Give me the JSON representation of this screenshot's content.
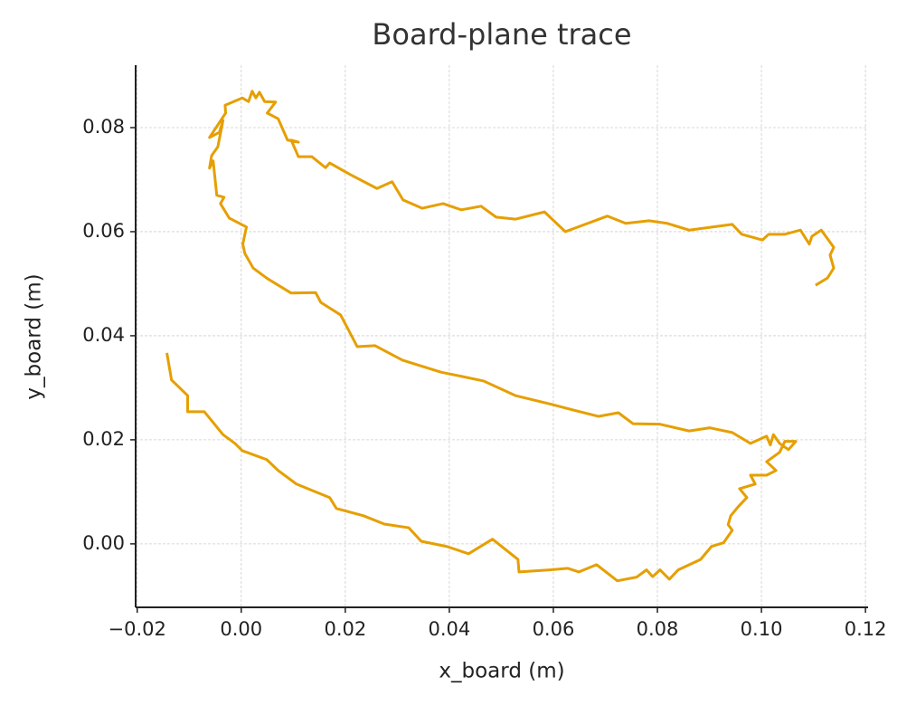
{
  "chart_data": {
    "type": "line",
    "title": "Board-plane trace",
    "x_label": "x_board (m)",
    "y_label": "y_board (m)",
    "color": "#e69f00",
    "grid": true,
    "xlim": [
      -0.0203,
      0.1205
    ],
    "ylim": [
      -0.0122,
      0.092
    ],
    "xticks": [
      {
        "value": -0.02,
        "label": "−0.02"
      },
      {
        "value": 0,
        "label": "0.00"
      },
      0.02,
      0.04,
      0.06,
      0.08,
      {
        "value": 0.1,
        "label": "0.10"
      },
      0.12
    ],
    "yticks": [
      {
        "value": 0,
        "label": "0.00"
      },
      0.02,
      0.04,
      0.06,
      0.08
    ],
    "x": [
      -0.0143,
      -0.0134,
      -0.0103,
      -0.0103,
      -0.0071,
      -0.0035,
      -0.0012,
      0.0002,
      0.0049,
      0.0071,
      0.0106,
      0.017,
      0.0183,
      0.0235,
      0.0275,
      0.0322,
      0.0346,
      0.0395,
      0.0437,
      0.0483,
      0.0532,
      0.0534,
      0.0593,
      0.0628,
      0.0649,
      0.0683,
      0.0723,
      0.076,
      0.0779,
      0.0791,
      0.0805,
      0.0823,
      0.084,
      0.0883,
      0.0904,
      0.0927,
      0.0944,
      0.0936,
      0.0941,
      0.0955,
      0.0972,
      0.0958,
      0.0988,
      0.0979,
      0.101,
      0.1028,
      0.101,
      0.1035,
      0.1045,
      0.1066,
      0.1052,
      0.1035,
      0.1023,
      0.1017,
      0.101,
      0.0979,
      0.0944,
      0.0901,
      0.0861,
      0.0805,
      0.0753,
      0.0725,
      0.0687,
      0.0643,
      0.0597,
      0.0527,
      0.0466,
      0.0423,
      0.0384,
      0.031,
      0.0257,
      0.0223,
      0.0191,
      0.0153,
      0.0143,
      0.0096,
      0.005,
      0.0023,
      0.0007,
      0.0003,
      0.001,
      -0.0023,
      -0.004,
      -0.0033,
      -0.0047,
      -0.0054,
      -0.0061,
      -0.0057,
      -0.0045,
      -0.0035,
      -0.0042,
      -0.0061,
      -0.003,
      -0.0031,
      0.0002,
      0.0014,
      0.0021,
      0.0028,
      0.0035,
      0.0045,
      0.0066,
      0.005,
      0.0071,
      0.0089,
      0.011,
      0.0096,
      0.011,
      0.0136,
      0.0162,
      0.017,
      0.0209,
      0.0261,
      0.029,
      0.0311,
      0.0348,
      0.0388,
      0.0423,
      0.0461,
      0.049,
      0.0527,
      0.0583,
      0.0623,
      0.0704,
      0.0739,
      0.0784,
      0.0819,
      0.0861,
      0.0944,
      0.0962,
      0.1002,
      0.1014,
      0.1045,
      0.1075,
      0.1092,
      0.1097,
      0.1115,
      0.1139,
      0.1132,
      0.1139,
      0.1127,
      0.1104
    ],
    "values": [
      0.0367,
      0.0315,
      0.0285,
      0.0254,
      0.0254,
      0.021,
      0.0193,
      0.0179,
      0.0162,
      0.0141,
      0.0115,
      0.0089,
      0.0068,
      0.0054,
      0.0038,
      0.0031,
      0.0005,
      -0.0005,
      -0.0019,
      0.0009,
      -0.003,
      -0.0054,
      -0.005,
      -0.0047,
      -0.0054,
      -0.004,
      -0.0071,
      -0.0064,
      -0.005,
      -0.0063,
      -0.005,
      -0.0068,
      -0.005,
      -0.003,
      -0.0005,
      0.0002,
      0.0026,
      0.0037,
      0.0054,
      0.0071,
      0.0089,
      0.0106,
      0.0115,
      0.0132,
      0.0132,
      0.0141,
      0.0158,
      0.0176,
      0.0197,
      0.0197,
      0.0181,
      0.0193,
      0.021,
      0.019,
      0.0207,
      0.0193,
      0.0214,
      0.0223,
      0.0217,
      0.023,
      0.0231,
      0.0252,
      0.0245,
      0.0256,
      0.0268,
      0.0285,
      0.0313,
      0.0322,
      0.033,
      0.0353,
      0.0381,
      0.0379,
      0.044,
      0.0464,
      0.0483,
      0.0482,
      0.051,
      0.053,
      0.0558,
      0.0576,
      0.0609,
      0.0626,
      0.0654,
      0.0666,
      0.067,
      0.0736,
      0.0722,
      0.0746,
      0.0763,
      0.0814,
      0.0791,
      0.0781,
      0.0828,
      0.0843,
      0.0857,
      0.085,
      0.087,
      0.0857,
      0.0868,
      0.085,
      0.0849,
      0.0828,
      0.0817,
      0.0776,
      0.0772,
      0.0776,
      0.0744,
      0.0744,
      0.0723,
      0.0732,
      0.071,
      0.0683,
      0.0696,
      0.0661,
      0.0645,
      0.0654,
      0.0642,
      0.0649,
      0.0628,
      0.0624,
      0.0638,
      0.06,
      0.063,
      0.0616,
      0.0621,
      0.0616,
      0.0603,
      0.0614,
      0.0595,
      0.0584,
      0.0595,
      0.0595,
      0.0603,
      0.0576,
      0.0591,
      0.0603,
      0.057,
      0.0555,
      0.053,
      0.0511,
      0.0497
    ]
  }
}
